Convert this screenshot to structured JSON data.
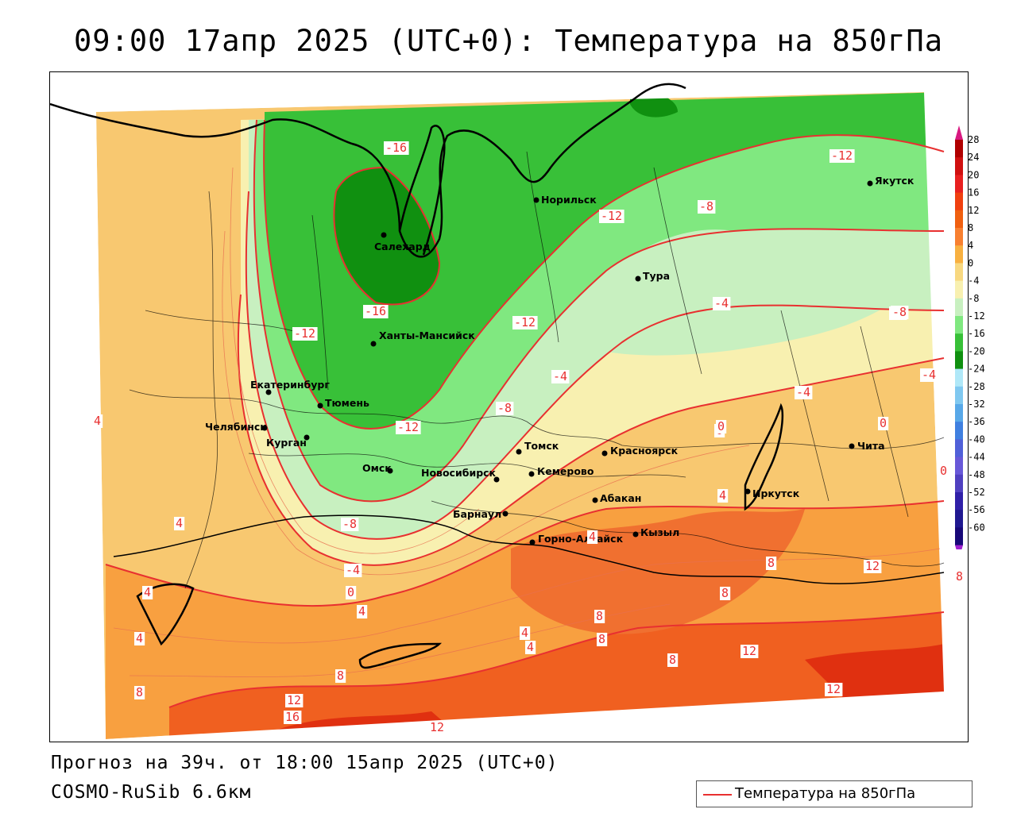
{
  "header": {
    "title": "09:00 17апр 2025 (UTC+0): Температура на 850гПа"
  },
  "footer": {
    "forecast": "Прогноз на 39ч. от 18:00 15апр 2025 (UTC+0)",
    "model": "COSMO-RuSib 6.6км"
  },
  "legend": {
    "line_label": "Температура на 850гПа",
    "line_color": "#e83030"
  },
  "colorbar": {
    "labels": [
      "28",
      "24",
      "20",
      "16",
      "12",
      "8",
      "4",
      "0",
      "-4",
      "-8",
      "-12",
      "-16",
      "-20",
      "-24",
      "-28",
      "-32",
      "-36",
      "-40",
      "-44",
      "-48",
      "-52",
      "-56",
      "-60"
    ],
    "colors": [
      "#b00000",
      "#d01010",
      "#e82020",
      "#f04010",
      "#f06010",
      "#f88030",
      "#f8b040",
      "#f8d880",
      "#f8f0b0",
      "#c8f0c0",
      "#80e880",
      "#38c038",
      "#109010",
      "#b0e8f8",
      "#80c8f0",
      "#58a8e8",
      "#4080e0",
      "#5060d8",
      "#6858d8",
      "#5040c0",
      "#3020a8",
      "#201890",
      "#180878"
    ]
  },
  "cities": [
    {
      "name": "Салехард"
    },
    {
      "name": "Норильск"
    },
    {
      "name": "Якутск"
    },
    {
      "name": "Тура"
    },
    {
      "name": "Ханты-Мансийск"
    },
    {
      "name": "Екатеринбург"
    },
    {
      "name": "Тюмень"
    },
    {
      "name": "Челябинск"
    },
    {
      "name": "Курган"
    },
    {
      "name": "Омск"
    },
    {
      "name": "Новосибирск"
    },
    {
      "name": "Томск"
    },
    {
      "name": "Кемерово"
    },
    {
      "name": "Красноярск"
    },
    {
      "name": "Барнаул"
    },
    {
      "name": "Абакан"
    },
    {
      "name": "Иркутск"
    },
    {
      "name": "Чита"
    },
    {
      "name": "Горно-Алтайск"
    },
    {
      "name": "Кызыл"
    }
  ],
  "isotherm_labels": [
    "-16",
    "-16",
    "-12",
    "-12",
    "-12",
    "-12",
    "-8",
    "-8",
    "-8",
    "-8",
    "-4",
    "-4",
    "-4",
    "-4",
    "-4",
    "0",
    "0",
    "0",
    "0",
    "4",
    "4",
    "4",
    "4",
    "4",
    "4",
    "4",
    "8",
    "8",
    "8",
    "8",
    "8",
    "8",
    "8",
    "8",
    "12",
    "12",
    "12",
    "12",
    "16",
    "-12",
    "-8",
    "4",
    "0",
    "4",
    "12"
  ]
}
